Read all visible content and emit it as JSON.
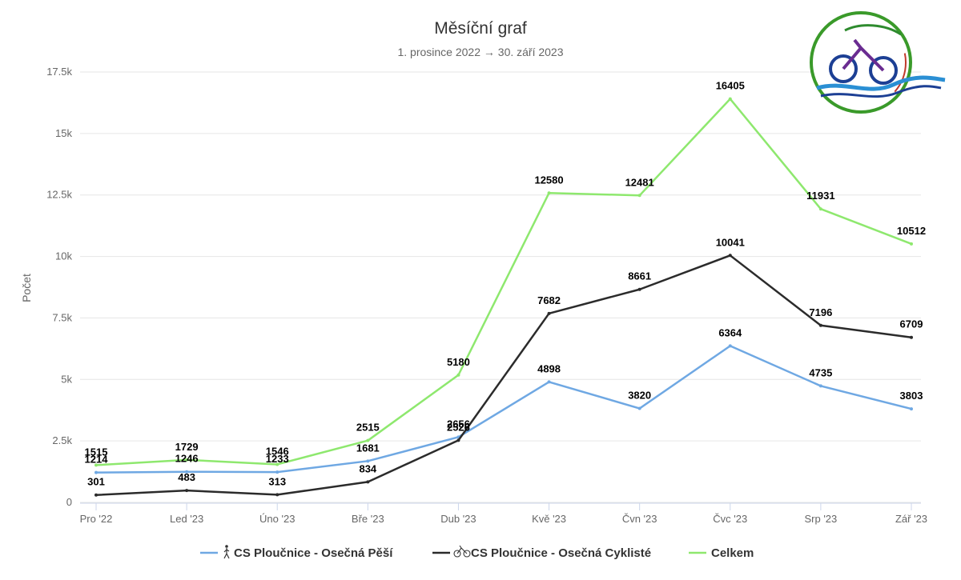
{
  "chart_data": {
    "type": "line",
    "title": "Měsíční graf",
    "subtitle": "1. prosince 2022 → 30. září 2023",
    "ylabel": "Počet",
    "xlabel": "",
    "ylim": [
      0,
      17500
    ],
    "yticks": [
      0,
      2500,
      5000,
      7500,
      10000,
      12500,
      15000,
      17500
    ],
    "ytick_labels": [
      "0",
      "2.5k",
      "5k",
      "7.5k",
      "10k",
      "12.5k",
      "15k",
      "17.5k"
    ],
    "categories": [
      "Pro '22",
      "Led '23",
      "Úno '23",
      "Bře '23",
      "Dub '23",
      "Kvě '23",
      "Čvn '23",
      "Čvc '23",
      "Srp '23",
      "Zář '23"
    ],
    "grid": true,
    "legend_position": "bottom",
    "series": [
      {
        "name": "CS Ploučnice - Osečná Pěší",
        "color": "#6fa8e3",
        "icon": "pedestrian-icon",
        "values": [
          1214,
          1246,
          1233,
          1681,
          2656,
          4898,
          3820,
          6364,
          4735,
          3803
        ]
      },
      {
        "name": "CS Ploučnice - Osečná Cyklisté",
        "color": "#2b2b2b",
        "icon": "bicycle-icon",
        "values": [
          301,
          483,
          313,
          834,
          2526,
          7682,
          8661,
          10041,
          7196,
          6709
        ]
      },
      {
        "name": "Celkem",
        "color": "#8ee86e",
        "icon": "",
        "values": [
          1515,
          1729,
          1546,
          2515,
          5180,
          12580,
          12481,
          16405,
          11931,
          10512
        ]
      }
    ]
  },
  "logo": {
    "name": "club-logo"
  }
}
